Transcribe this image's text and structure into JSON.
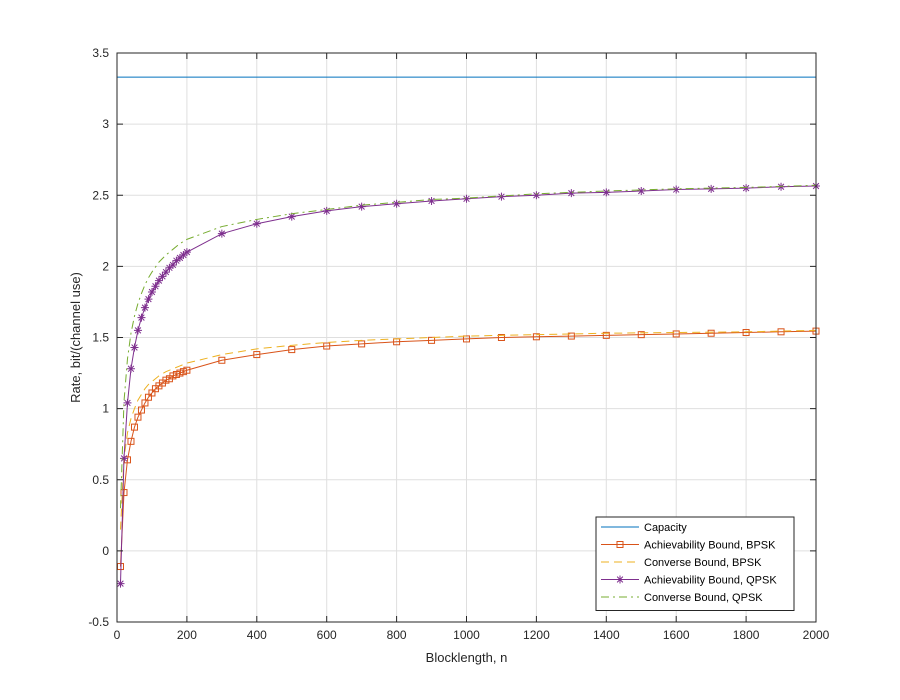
{
  "chart_data": {
    "type": "line",
    "title": "",
    "xlabel": "Blocklength, n",
    "ylabel": "Rate, bit/(channel use)",
    "xlim": [
      0,
      2000
    ],
    "ylim": [
      -0.5,
      3.5
    ],
    "xticks": [
      0,
      200,
      400,
      600,
      800,
      1000,
      1200,
      1400,
      1600,
      1800,
      2000
    ],
    "yticks": [
      -0.5,
      0,
      0.5,
      1,
      1.5,
      2,
      2.5,
      3,
      3.5
    ],
    "xtick_labels": [
      "0",
      "200",
      "400",
      "600",
      "800",
      "1000",
      "1200",
      "1400",
      "1600",
      "1800",
      "2000"
    ],
    "ytick_labels": [
      "-0.5",
      "0",
      "0.5",
      "1",
      "1.5",
      "2",
      "2.5",
      "3",
      "3.5"
    ],
    "grid": true,
    "legend_position": "bottom-right",
    "series": [
      {
        "name": "Capacity",
        "color": "#0072BD",
        "line_style": "solid",
        "marker": "none",
        "x": [
          0,
          2000
        ],
        "y": [
          3.33,
          3.33
        ]
      },
      {
        "name": "Achievability Bound, BPSK",
        "color": "#D95319",
        "line_style": "solid",
        "marker": "square",
        "x": [
          10,
          20,
          30,
          40,
          50,
          60,
          70,
          80,
          90,
          100,
          110,
          120,
          130,
          140,
          150,
          160,
          170,
          180,
          190,
          200,
          300,
          400,
          500,
          600,
          700,
          800,
          900,
          1000,
          1100,
          1200,
          1300,
          1400,
          1500,
          1600,
          1700,
          1800,
          1900,
          2000
        ],
        "y": [
          -0.11,
          0.41,
          0.64,
          0.77,
          0.87,
          0.94,
          0.99,
          1.04,
          1.08,
          1.11,
          1.14,
          1.16,
          1.18,
          1.2,
          1.21,
          1.23,
          1.24,
          1.25,
          1.26,
          1.27,
          1.34,
          1.38,
          1.415,
          1.44,
          1.455,
          1.47,
          1.48,
          1.49,
          1.5,
          1.505,
          1.51,
          1.515,
          1.52,
          1.525,
          1.53,
          1.535,
          1.54,
          1.545
        ]
      },
      {
        "name": "Converse Bound, BPSK",
        "color": "#EDB120",
        "line_style": "dashed",
        "marker": "none",
        "x": [
          10,
          20,
          30,
          40,
          50,
          60,
          70,
          80,
          90,
          100,
          120,
          140,
          160,
          180,
          200,
          300,
          400,
          500,
          600,
          700,
          800,
          900,
          1000,
          1200,
          1400,
          1600,
          1800,
          2000
        ],
        "y": [
          0.15,
          0.65,
          0.83,
          0.93,
          1.0,
          1.06,
          1.1,
          1.14,
          1.17,
          1.19,
          1.23,
          1.26,
          1.28,
          1.3,
          1.32,
          1.38,
          1.42,
          1.445,
          1.465,
          1.48,
          1.49,
          1.5,
          1.51,
          1.52,
          1.53,
          1.535,
          1.54,
          1.55
        ]
      },
      {
        "name": "Achievability Bound, QPSK",
        "color": "#7E2F8E",
        "line_style": "solid",
        "marker": "asterisk",
        "x": [
          10,
          20,
          30,
          40,
          50,
          60,
          70,
          80,
          90,
          100,
          110,
          120,
          130,
          140,
          150,
          160,
          170,
          180,
          190,
          200,
          300,
          400,
          500,
          600,
          700,
          800,
          900,
          1000,
          1100,
          1200,
          1300,
          1400,
          1500,
          1600,
          1700,
          1800,
          1900,
          2000
        ],
        "y": [
          -0.23,
          0.65,
          1.04,
          1.28,
          1.43,
          1.55,
          1.64,
          1.71,
          1.77,
          1.82,
          1.86,
          1.9,
          1.93,
          1.96,
          1.99,
          2.01,
          2.04,
          2.06,
          2.08,
          2.1,
          2.23,
          2.3,
          2.35,
          2.39,
          2.42,
          2.44,
          2.46,
          2.475,
          2.49,
          2.5,
          2.515,
          2.52,
          2.53,
          2.54,
          2.545,
          2.55,
          2.56,
          2.565
        ]
      },
      {
        "name": "Converse Bound, QPSK",
        "color": "#77AC30",
        "line_style": "dashdot",
        "marker": "none",
        "x": [
          10,
          20,
          30,
          40,
          50,
          60,
          70,
          80,
          90,
          100,
          120,
          140,
          160,
          180,
          200,
          300,
          400,
          500,
          600,
          700,
          800,
          900,
          1000,
          1200,
          1400,
          1600,
          1800,
          2000
        ],
        "y": [
          0.3,
          1.05,
          1.35,
          1.53,
          1.65,
          1.74,
          1.81,
          1.87,
          1.92,
          1.96,
          2.03,
          2.08,
          2.12,
          2.16,
          2.19,
          2.28,
          2.33,
          2.37,
          2.4,
          2.43,
          2.45,
          2.47,
          2.48,
          2.51,
          2.53,
          2.545,
          2.555,
          2.57
        ]
      }
    ]
  }
}
